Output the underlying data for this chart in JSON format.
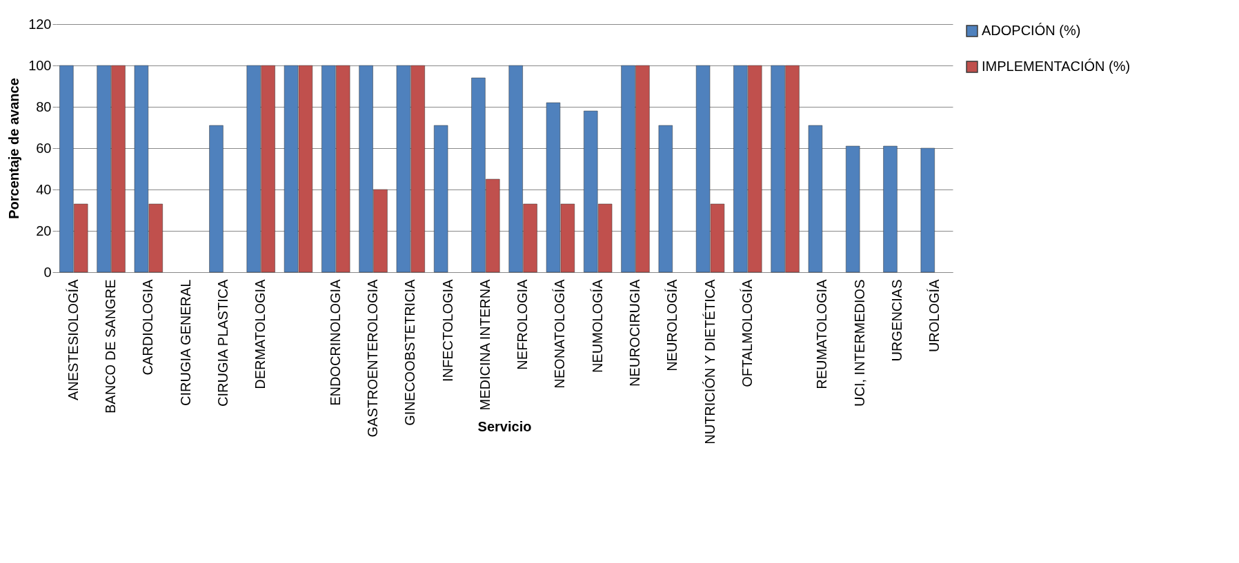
{
  "chart_data": {
    "type": "bar",
    "xlabel": "Servicio",
    "ylabel": "Porcentaje de avance",
    "categories": [
      "ANESTESIOLOGÍA",
      "BANCO DE SANGRE",
      "CARDIOLOGIA",
      "CIRUGIA GENERAL",
      "CIRUGIA PLASTICA",
      "DERMATOLOGIA",
      null,
      "ENDOCRINOLOGIA",
      "GASTROENTEROLOGIA",
      "GINECOOBSTETRICIA",
      "INFECTOLOGIA",
      "MEDICINA INTERNA",
      "NEFROLOGIA",
      "NEONATOLOGÍA",
      "NEUMOLOGÍA",
      "NEUROCIRUGIA",
      "NEUROLOGÍA",
      "NUTRICIÓN Y DIETÉTICA",
      "OFTALMOLOGÍA",
      null,
      "REUMATOLOGIA",
      "UCI, INTERMEDIOS",
      "URGENCIAS",
      "UROLOGÍA"
    ],
    "series": [
      {
        "name": "ADOPCIÓN (%)",
        "color": "#4f81bd",
        "values": [
          100,
          100,
          100,
          null,
          71,
          100,
          100,
          100,
          100,
          100,
          71,
          94,
          100,
          82,
          78,
          100,
          71,
          100,
          100,
          100,
          71,
          61,
          61,
          60
        ]
      },
      {
        "name": "IMPLEMENTACIÓN (%)",
        "color": "#c0504d",
        "values": [
          33,
          100,
          33,
          null,
          null,
          100,
          100,
          100,
          40,
          100,
          null,
          45,
          33,
          33,
          33,
          100,
          null,
          33,
          100,
          100,
          null,
          null,
          null,
          null
        ]
      }
    ],
    "ylim": [
      0,
      120
    ],
    "yticks": [
      0,
      20,
      40,
      60,
      80,
      100,
      120
    ],
    "grid": "y",
    "legend": "right"
  }
}
